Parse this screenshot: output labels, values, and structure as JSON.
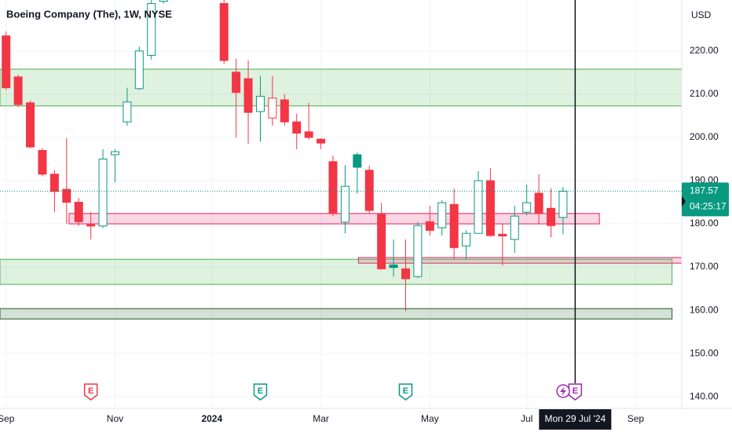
{
  "chart_data": {
    "type": "candlestick",
    "title": "Boeing Company (The), 1W, NYSE",
    "currency": "USD",
    "ylim": [
      137.3,
      231.8
    ],
    "yticks": [
      {
        "value": 140,
        "label": "140.00"
      },
      {
        "value": 150,
        "label": "150.00"
      },
      {
        "value": 160,
        "label": "160.00"
      },
      {
        "value": 170,
        "label": "170.00"
      },
      {
        "value": 180,
        "label": "180.00"
      },
      {
        "value": 190,
        "label": "190.00"
      },
      {
        "value": 200,
        "label": "200.00"
      },
      {
        "value": 210,
        "label": "210.00"
      },
      {
        "value": 220,
        "label": "220.00"
      }
    ],
    "xlim": [
      -0.5,
      55.8
    ],
    "xticks": [
      {
        "value": 0,
        "label": "Sep"
      },
      {
        "value": 9,
        "label": "Nov"
      },
      {
        "value": 17,
        "label": "2024"
      },
      {
        "value": 26,
        "label": "Mar"
      },
      {
        "value": 35,
        "label": "May"
      },
      {
        "value": 43,
        "label": "Jul"
      },
      {
        "value": 52,
        "label": "Sep"
      }
    ],
    "crosshair": {
      "value": 47,
      "label": "Mon 29 Jul '24"
    },
    "open": [
      223.5,
      214,
      208,
      197,
      191.5,
      188,
      185,
      179.8,
      179.5,
      196,
      203.6,
      211.3,
      219,
      231.5,
      null,
      null,
      null,
      null,
      231,
      215.1,
      213.6,
      206,
      204.5,
      208.7,
      203.6,
      201.3,
      199.6,
      194.4,
      180.4,
      196,
      192.4,
      182.2,
      170.5,
      169.6,
      167.8,
      180.5,
      179.1,
      184.5,
      174.9,
      177.8,
      190,
      177.6,
      176.4,
      182.7,
      187.1,
      183.6,
      181.5
    ],
    "high": [
      224.5,
      214.5,
      208.5,
      197.5,
      192.5,
      199.8,
      186,
      182.7,
      197.3,
      197.3,
      211.5,
      221,
      232,
      232,
      null,
      null,
      null,
      null,
      232,
      218.2,
      217.8,
      214.2,
      214.2,
      210,
      205.5,
      208,
      199.8,
      195.8,
      193.6,
      196.5,
      193.5,
      184.9,
      176.4,
      176.4,
      180.5,
      184.2,
      185.5,
      188.2,
      178.5,
      192.2,
      192.9,
      180,
      184.2,
      189.1,
      191.5,
      188.2,
      188.5
    ],
    "low": [
      211,
      207,
      197.5,
      191,
      182.7,
      180,
      179.5,
      176.4,
      179,
      189.6,
      202.7,
      211,
      218,
      231,
      null,
      null,
      null,
      null,
      217,
      200,
      198.5,
      199,
      202.7,
      202.7,
      197.3,
      199.5,
      197.3,
      181.8,
      177.8,
      187,
      182.5,
      169.4,
      167.8,
      159.8,
      167.5,
      177.3,
      177.3,
      171.8,
      171.8,
      177.8,
      177,
      170.4,
      173.3,
      182,
      180,
      176.9,
      177.6
    ],
    "close": [
      211.5,
      207.6,
      197.8,
      191.5,
      187.5,
      185,
      180.5,
      179.5,
      195,
      196.7,
      208.2,
      220,
      231,
      232,
      null,
      null,
      null,
      null,
      217.8,
      210.4,
      205.8,
      209.5,
      209.1,
      203.6,
      201,
      200,
      198.7,
      182.4,
      188.7,
      193.1,
      183.1,
      169.6,
      169.9,
      167.3,
      179.6,
      178.5,
      184.9,
      174.5,
      177.8,
      190,
      177.3,
      177.2,
      181.8,
      184.9,
      182.4,
      179.6,
      187.57
    ],
    "up_color": "#089981",
    "down_color": "#f23645",
    "last_price": 187.57,
    "countdown": "04:25:17",
    "grid": true,
    "zones": [
      {
        "from": -0.5,
        "to": 55.8,
        "low": 207.3,
        "high": 215.8,
        "color": "#4caf50"
      },
      {
        "from": 5.2,
        "to": 49,
        "low": 180,
        "high": 182.4,
        "color": "#e91e63"
      },
      {
        "from": 29.1,
        "to": 55.8,
        "low": 170.9,
        "high": 172.2,
        "color": "#e91e63"
      },
      {
        "from": -0.5,
        "to": 55,
        "low": 166,
        "high": 171.8,
        "color": "#4caf50"
      },
      {
        "from": -0.5,
        "to": 55,
        "low": 158,
        "high": 160.4,
        "color": "#1b5e20"
      }
    ],
    "events": [
      {
        "x": 7,
        "label": "E",
        "color": "#f23645"
      },
      {
        "x": 21,
        "label": "E",
        "color": "#089981"
      },
      {
        "x": 33,
        "label": "E",
        "color": "#089981"
      },
      {
        "x": 47,
        "label": "E",
        "color": "#9c27b0"
      }
    ]
  }
}
